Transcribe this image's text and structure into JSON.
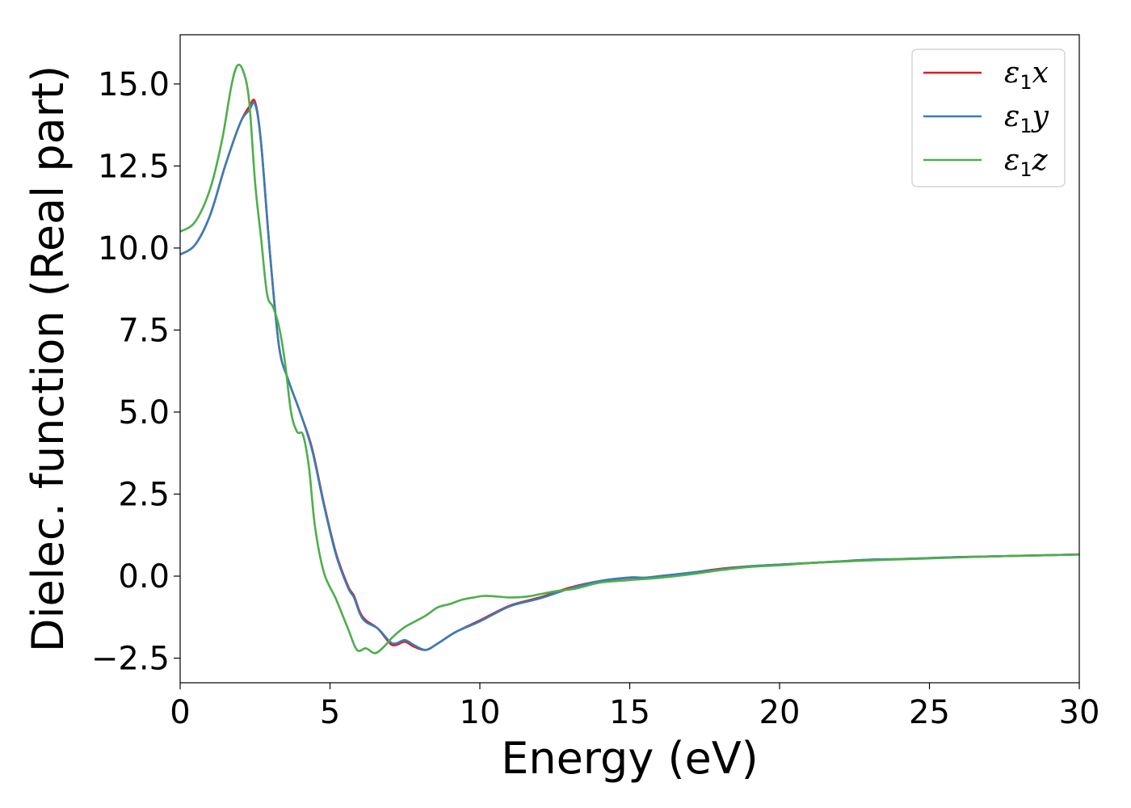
{
  "chart_data": {
    "type": "line",
    "title": "",
    "xlabel": "Energy (eV)",
    "ylabel": "Dielec. function (Real part)",
    "xlim": [
      0,
      30
    ],
    "ylim": [
      -3.25,
      16.5
    ],
    "xticks": [
      0,
      5,
      10,
      15,
      20,
      25,
      30
    ],
    "xtick_labels": [
      "0",
      "5",
      "10",
      "15",
      "20",
      "25",
      "30"
    ],
    "yticks": [
      -2.5,
      0.0,
      2.5,
      5.0,
      7.5,
      10.0,
      12.5,
      15.0
    ],
    "ytick_labels": [
      "−2.5",
      "0.0",
      "2.5",
      "5.0",
      "7.5",
      "10.0",
      "12.5",
      "15.0"
    ],
    "grid": false,
    "legend_position": "top-right",
    "series": [
      {
        "name": "ε₁x",
        "legend_main": "ε",
        "legend_sub": "1",
        "legend_tail": "x",
        "color": "#e41a1c",
        "x": [
          0,
          0.5,
          1.0,
          1.5,
          2.0,
          2.3,
          2.5,
          2.7,
          3.0,
          3.3,
          3.6,
          4.0,
          4.4,
          4.8,
          5.2,
          5.6,
          5.8,
          6.0,
          6.2,
          6.6,
          7.0,
          7.2,
          7.5,
          7.8,
          8.2,
          8.6,
          9.2,
          10.0,
          11.0,
          12.0,
          13.0,
          14.0,
          15.0,
          15.5,
          16.0,
          17.0,
          18.0,
          19.0,
          20.0,
          21.0,
          22.0,
          23.0,
          24.0,
          25.0,
          26.0,
          27.0,
          28.0,
          29.0,
          30.0
        ],
        "y": [
          9.8,
          10.1,
          11.0,
          12.5,
          13.8,
          14.3,
          14.45,
          13.2,
          9.8,
          7.0,
          6.0,
          5.0,
          3.9,
          2.2,
          0.7,
          -0.3,
          -0.6,
          -1.1,
          -1.35,
          -1.6,
          -2.05,
          -2.1,
          -2.0,
          -2.15,
          -2.25,
          -2.05,
          -1.7,
          -1.35,
          -0.9,
          -0.65,
          -0.35,
          -0.15,
          -0.05,
          -0.05,
          0.0,
          0.1,
          0.22,
          0.3,
          0.35,
          0.4,
          0.45,
          0.5,
          0.52,
          0.55,
          0.58,
          0.6,
          0.62,
          0.64,
          0.66
        ]
      },
      {
        "name": "ε₁y",
        "legend_main": "ε",
        "legend_sub": "1",
        "legend_tail": "y",
        "color": "#377eb8",
        "x": [
          0,
          0.5,
          1.0,
          1.5,
          2.0,
          2.3,
          2.5,
          2.7,
          3.0,
          3.3,
          3.6,
          4.0,
          4.4,
          4.8,
          5.2,
          5.6,
          5.8,
          6.0,
          6.2,
          6.6,
          7.0,
          7.2,
          7.5,
          7.8,
          8.2,
          8.6,
          9.2,
          10.0,
          11.0,
          12.0,
          13.0,
          14.0,
          15.0,
          15.5,
          16.0,
          17.0,
          18.0,
          19.0,
          20.0,
          21.0,
          22.0,
          23.0,
          24.0,
          25.0,
          26.0,
          27.0,
          28.0,
          29.0,
          30.0
        ],
        "y": [
          9.8,
          10.1,
          11.0,
          12.5,
          13.8,
          14.2,
          14.38,
          13.2,
          9.8,
          7.0,
          6.0,
          5.0,
          3.85,
          2.15,
          0.65,
          -0.35,
          -0.65,
          -1.15,
          -1.4,
          -1.6,
          -2.0,
          -2.05,
          -1.95,
          -2.1,
          -2.25,
          -2.05,
          -1.7,
          -1.38,
          -0.92,
          -0.68,
          -0.38,
          -0.15,
          -0.04,
          -0.05,
          0.0,
          0.1,
          0.2,
          0.3,
          0.35,
          0.4,
          0.45,
          0.5,
          0.52,
          0.55,
          0.58,
          0.6,
          0.62,
          0.64,
          0.66
        ]
      },
      {
        "name": "ε₁z",
        "legend_main": "ε",
        "legend_sub": "1",
        "legend_tail": "z",
        "color": "#4daf4a",
        "x": [
          0,
          0.5,
          1.0,
          1.4,
          1.7,
          1.9,
          2.1,
          2.3,
          2.5,
          2.7,
          2.9,
          3.1,
          3.3,
          3.5,
          3.7,
          3.9,
          4.1,
          4.3,
          4.5,
          4.8,
          5.2,
          5.6,
          5.9,
          6.2,
          6.5,
          6.8,
          7.1,
          7.5,
          7.8,
          8.2,
          8.6,
          9.0,
          9.4,
          9.8,
          10.2,
          11.0,
          11.6,
          12.0,
          12.6,
          13.2,
          14.0,
          15.0,
          16.0,
          17.0,
          18.0,
          19.0,
          20.0,
          21.0,
          22.0,
          23.0,
          24.0,
          25.0,
          26.0,
          27.0,
          28.0,
          29.0,
          30.0
        ],
        "y": [
          10.5,
          10.8,
          11.8,
          13.3,
          14.9,
          15.55,
          15.4,
          14.5,
          12.0,
          10.3,
          8.6,
          8.2,
          7.6,
          6.5,
          5.0,
          4.4,
          4.3,
          3.3,
          1.5,
          0.1,
          -0.7,
          -1.6,
          -2.25,
          -2.2,
          -2.35,
          -2.15,
          -1.85,
          -1.55,
          -1.4,
          -1.2,
          -0.95,
          -0.85,
          -0.72,
          -0.65,
          -0.6,
          -0.65,
          -0.62,
          -0.55,
          -0.45,
          -0.38,
          -0.2,
          -0.12,
          -0.05,
          0.05,
          0.18,
          0.28,
          0.33,
          0.4,
          0.44,
          0.48,
          0.51,
          0.54,
          0.57,
          0.6,
          0.62,
          0.64,
          0.66
        ]
      }
    ]
  }
}
